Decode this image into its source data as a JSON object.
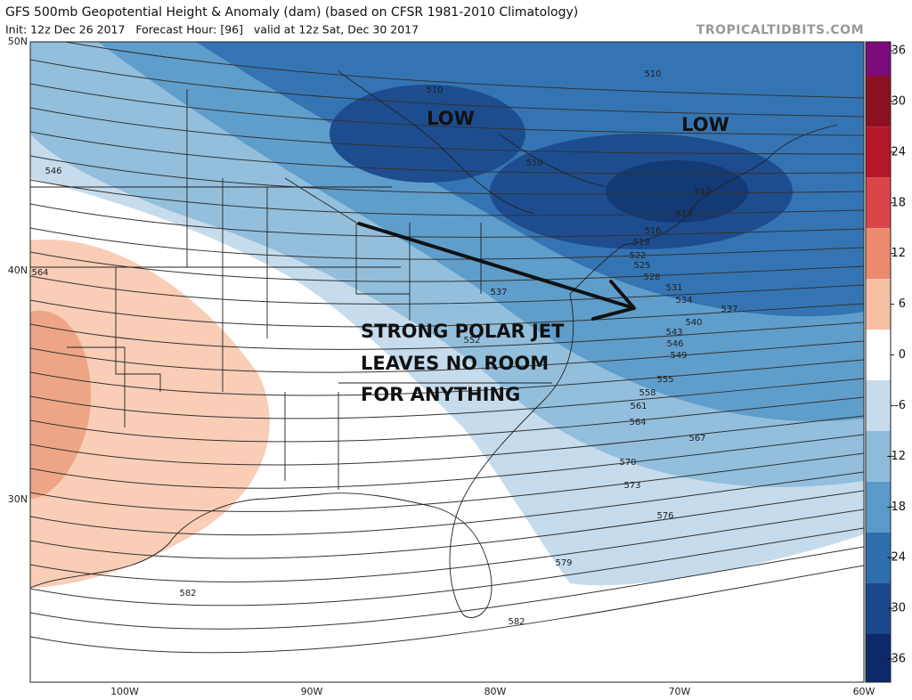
{
  "header": {
    "title": "GFS 500mb Geopotential Height & Anomaly (dam) (based on CFSR 1981-2010 Climatology)",
    "subtitle": "Init: 12z Dec 26 2017   Forecast Hour: [96]   valid at 12z Sat, Dec 30 2017",
    "watermark": "TROPICALTIDBITS.COM"
  },
  "map": {
    "latitude_labels": [
      "50N",
      "40N",
      "30N"
    ],
    "longitude_labels": [
      "100W",
      "90W",
      "80W",
      "70W",
      "60W"
    ],
    "contour_labels": [
      510,
      510,
      510,
      510,
      513,
      516,
      519,
      522,
      525,
      528,
      531,
      534,
      537,
      537,
      540,
      543,
      546,
      549,
      552,
      555,
      558,
      561,
      564,
      567,
      570,
      573,
      576,
      579,
      582,
      582,
      546,
      564
    ],
    "annotations": [
      "LOW",
      "LOW",
      "STRONG POLAR JET",
      "LEAVES NO ROOM",
      "FOR ANYTHING"
    ]
  },
  "colorbar": {
    "ticks": [
      36,
      30,
      24,
      18,
      12,
      6,
      0,
      -6,
      -12,
      -18,
      -24,
      -30,
      -36
    ]
  }
}
